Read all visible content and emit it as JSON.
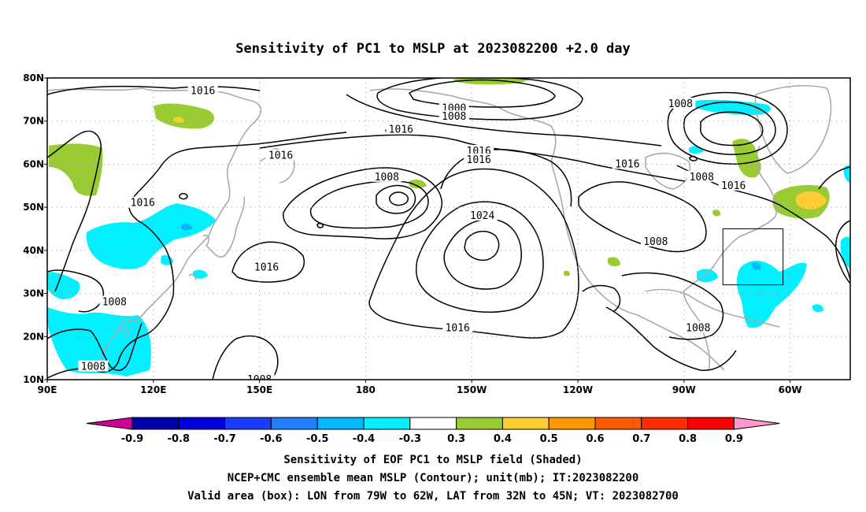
{
  "title": "Sensitivity of PC1 to MSLP at 2023082200 +2.0 day",
  "map": {
    "lat_labels": [
      "80N",
      "70N",
      "60N",
      "50N",
      "40N",
      "30N",
      "20N",
      "10N"
    ],
    "lon_labels": [
      "90E",
      "120E",
      "150E",
      "180",
      "150W",
      "120W",
      "90W",
      "60W"
    ],
    "lat_range": [
      10,
      80
    ],
    "lon_range_east": [
      90,
      317
    ],
    "valid_box": {
      "lon_west": -79,
      "lon_east": -62,
      "lat_south": 32,
      "lat_north": 45
    },
    "contour_labels": [
      {
        "text": "1016",
        "lon": 134,
        "lat": 77
      },
      {
        "text": "1000",
        "lon": 205,
        "lat": 73
      },
      {
        "text": "1008",
        "lon": 205,
        "lat": 71
      },
      {
        "text": "1016",
        "lon": 190,
        "lat": 68
      },
      {
        "text": "1016",
        "lon": 156,
        "lat": 62
      },
      {
        "text": "1016",
        "lon": 212,
        "lat": 63
      },
      {
        "text": "1016",
        "lon": 212,
        "lat": 61
      },
      {
        "text": "1008",
        "lon": 269,
        "lat": 74
      },
      {
        "text": "1008",
        "lon": 186,
        "lat": 57
      },
      {
        "text": "1016",
        "lon": 254,
        "lat": 60
      },
      {
        "text": "1008",
        "lon": 275,
        "lat": 57
      },
      {
        "text": "1016",
        "lon": 284,
        "lat": 55
      },
      {
        "text": "1016",
        "lon": 117,
        "lat": 51
      },
      {
        "text": "1024",
        "lon": 213,
        "lat": 48
      },
      {
        "text": "1008",
        "lon": 262,
        "lat": 42
      },
      {
        "text": "1016",
        "lon": 152,
        "lat": 36
      },
      {
        "text": "1008",
        "lon": 109,
        "lat": 28
      },
      {
        "text": "1016",
        "lon": 206,
        "lat": 22
      },
      {
        "text": "1008",
        "lon": 274,
        "lat": 22
      },
      {
        "text": "1008",
        "lon": 103,
        "lat": 13
      },
      {
        "text": "1008",
        "lon": 150,
        "lat": 10
      }
    ]
  },
  "colorbar": {
    "labels": [
      "-0.9",
      "-0.8",
      "-0.7",
      "-0.6",
      "-0.5",
      "-0.4",
      "-0.3",
      "0.3",
      "0.4",
      "0.5",
      "0.6",
      "0.7",
      "0.8",
      "0.9"
    ],
    "colors": [
      "#0000aa",
      "#0000dd",
      "#1a3cff",
      "#1e7fff",
      "#00b8ff",
      "#00f0ff",
      "#ffffff",
      "#99cc33",
      "#ffcc33",
      "#ff9900",
      "#ff5a00",
      "#ff2a00",
      "#ff0000"
    ],
    "low_end_color": "#cc0099",
    "high_end_color": "#ff99cc"
  },
  "captions": {
    "line1": "Sensitivity of EOF PC1 to MSLP field (Shaded)",
    "line2": "NCEP+CMC ensemble mean MSLP (Contour); unit(mb); IT:2023082200",
    "line3": "Valid area (box): LON from 79W to 62W, LAT from 32N to 45N; VT: 2023082700"
  },
  "colors": {
    "land": "#aaaaaa",
    "contour": "#000000",
    "grid": "#999999",
    "positive_03": "#99cc33",
    "positive_04": "#ffcc33",
    "negative_04": "#00f0ff",
    "negative_05": "#00b8ff"
  }
}
